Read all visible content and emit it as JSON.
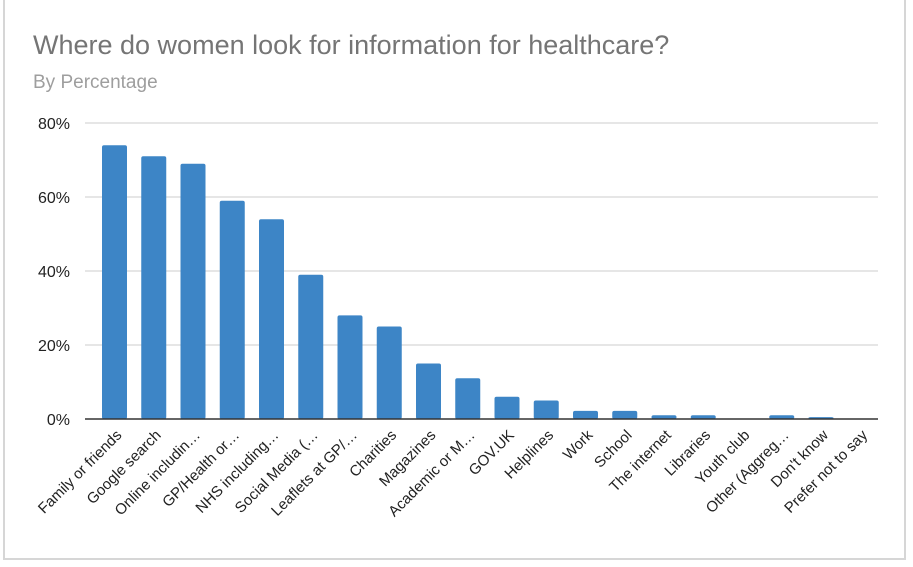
{
  "chart_data": {
    "type": "bar",
    "title": "Where do women look for information for healthcare?",
    "subtitle": "By Percentage",
    "xlabel": "",
    "ylabel": "",
    "ylim": [
      0,
      80
    ],
    "yticks": [
      "0%",
      "20%",
      "40%",
      "60%",
      "80%"
    ],
    "grid": true,
    "legend": "none",
    "bar_color": "#3d85c6",
    "categories": [
      "Family or friends",
      "Google search",
      "Online includin…",
      "GP/Health or…",
      "NHS including…",
      "Social Media (…",
      "Leaflets at GP/…",
      "Charities",
      "Magazines",
      "Academic or M…",
      "GOV.UK",
      "Helplines",
      "Work",
      "School",
      "The internet",
      "Libraries",
      "Youth club",
      "Other (Aggreg…",
      "Don't know",
      "Prefer not to say"
    ],
    "values": [
      74,
      71,
      69,
      59,
      54,
      39,
      28,
      25,
      15,
      11,
      6,
      5,
      2.2,
      2.2,
      1,
      1,
      0,
      1,
      0.5,
      0
    ]
  }
}
